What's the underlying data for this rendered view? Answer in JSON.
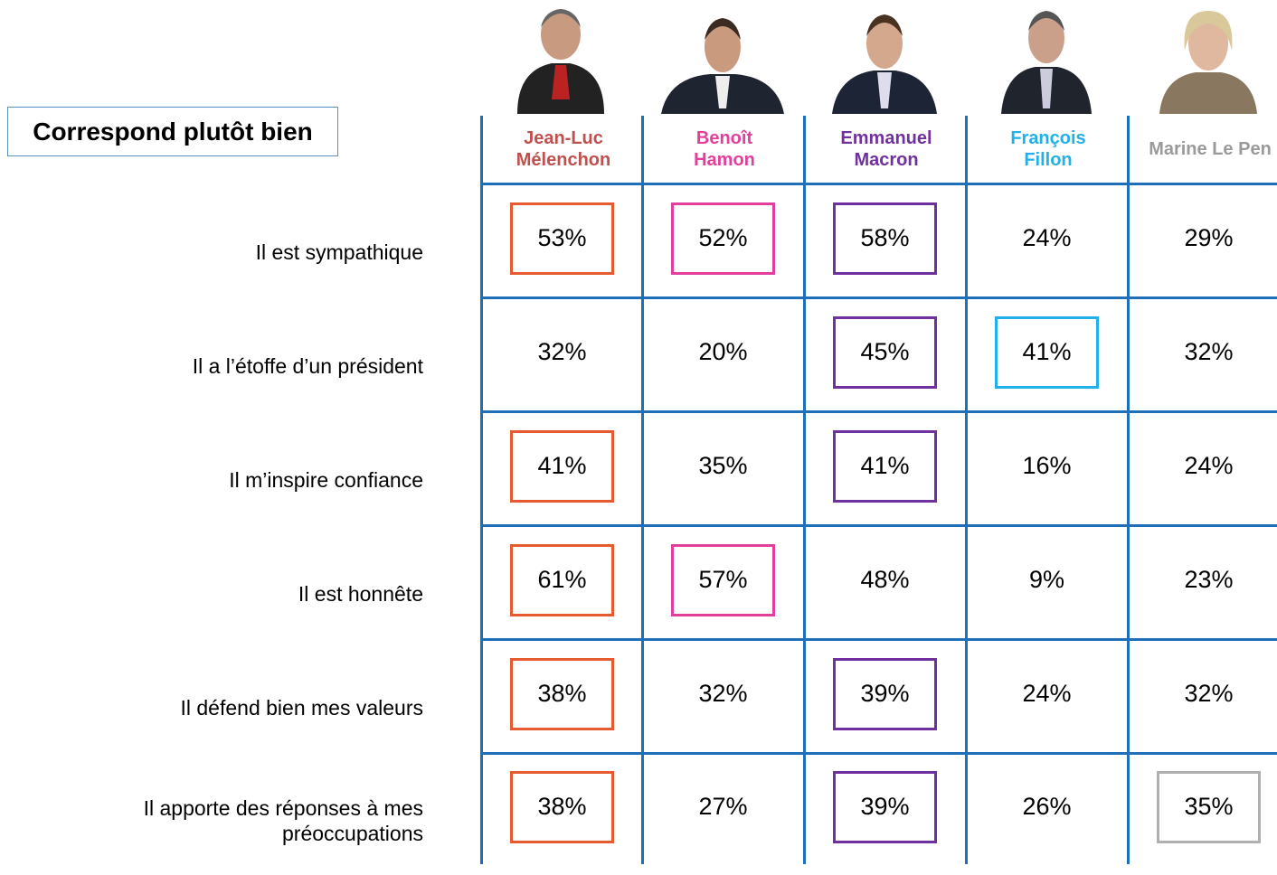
{
  "title": "Correspond plutôt bien",
  "candidates": [
    {
      "name": [
        "Jean-Luc",
        "Mélenchon"
      ],
      "color": "#c0504d",
      "box_color": "#e55a2e"
    },
    {
      "name": [
        "Benoît",
        "Hamon"
      ],
      "color": "#e23f9c",
      "box_color": "#e23f9c"
    },
    {
      "name": [
        "Emmanuel",
        "Macron"
      ],
      "color": "#7030a0",
      "box_color": "#7030a0"
    },
    {
      "name": [
        "François",
        "Fillon"
      ],
      "color": "#22b0ea",
      "box_color": "#22b0ea"
    },
    {
      "name": [
        "Marine Le Pen"
      ],
      "color": "#9a9a9a",
      "box_color": "#b0b0b0"
    }
  ],
  "rows": [
    {
      "label": "Il est sympathique",
      "cells": [
        {
          "text": "53%",
          "highlight": true
        },
        {
          "text": "52%",
          "highlight": true
        },
        {
          "text": "58%",
          "highlight": true
        },
        {
          "text": "24%",
          "highlight": false
        },
        {
          "text": "29%",
          "highlight": false
        }
      ]
    },
    {
      "label": "Il a l’étoffe d’un président",
      "cells": [
        {
          "text": "32%",
          "highlight": false
        },
        {
          "text": "20%",
          "highlight": false
        },
        {
          "text": "45%",
          "highlight": true
        },
        {
          "text": "41%",
          "highlight": true
        },
        {
          "text": "32%",
          "highlight": false
        }
      ]
    },
    {
      "label": "Il m’inspire confiance",
      "cells": [
        {
          "text": "41%",
          "highlight": true
        },
        {
          "text": "35%",
          "highlight": false
        },
        {
          "text": "41%",
          "highlight": true
        },
        {
          "text": "16%",
          "highlight": false
        },
        {
          "text": "24%",
          "highlight": false
        }
      ]
    },
    {
      "label": "Il est honnête",
      "cells": [
        {
          "text": "61%",
          "highlight": true
        },
        {
          "text": "57%",
          "highlight": true
        },
        {
          "text": "48%",
          "highlight": false
        },
        {
          "text": "9%",
          "highlight": false
        },
        {
          "text": "23%",
          "highlight": false
        }
      ]
    },
    {
      "label": "Il défend bien mes valeurs",
      "cells": [
        {
          "text": "38%",
          "highlight": true
        },
        {
          "text": "32%",
          "highlight": false
        },
        {
          "text": "39%",
          "highlight": true
        },
        {
          "text": "24%",
          "highlight": false
        },
        {
          "text": "32%",
          "highlight": false
        }
      ]
    },
    {
      "label": "Il apporte des réponses à mes préoccupations",
      "cells": [
        {
          "text": "38%",
          "highlight": true
        },
        {
          "text": "27%",
          "highlight": false
        },
        {
          "text": "39%",
          "highlight": true
        },
        {
          "text": "26%",
          "highlight": false
        },
        {
          "text": "35%",
          "highlight": true
        }
      ]
    }
  ]
}
